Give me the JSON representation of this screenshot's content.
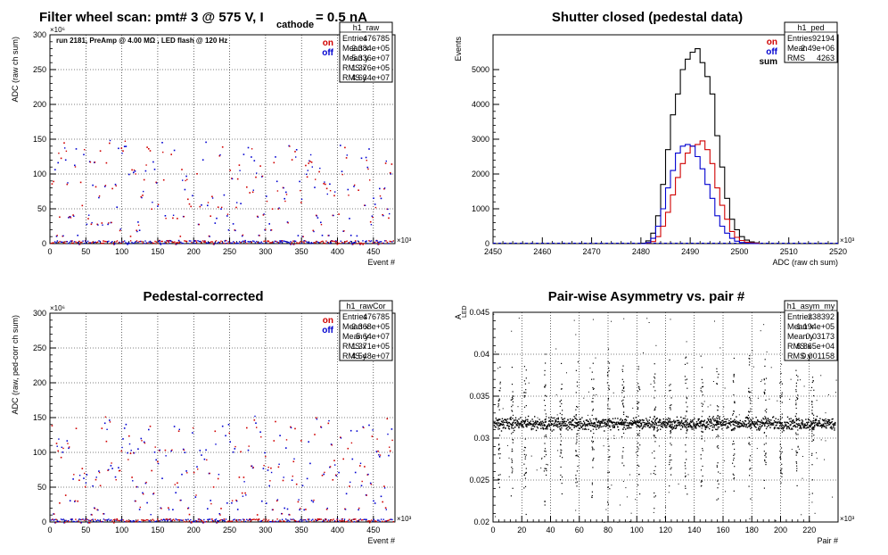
{
  "colors": {
    "on": "#d00000",
    "off": "#0000d0",
    "sum": "#000000",
    "background": "#ffffff",
    "frame": "#000000"
  },
  "chart_data": [
    {
      "id": "raw",
      "type": "scatter",
      "title": "Filter wheel scan: pmt#   3 @   575 V, I",
      "title_sub": "cathode",
      "title_tail": "= 0.5 nA",
      "annotation": "run 2181, PreAmp @ 4.00 MΩ , LED flash @  120 Hz",
      "xlabel": "Event #",
      "ylabel": "ADC (raw ch sum)",
      "x_exponent": "×10³",
      "y_exponent": "×10⁶",
      "xlim": [
        0,
        480
      ],
      "ylim": [
        0,
        300
      ],
      "xticks": [
        0,
        50,
        100,
        150,
        200,
        250,
        300,
        350,
        400,
        450
      ],
      "yticks": [
        0,
        50,
        100,
        150,
        200,
        250,
        300
      ],
      "grid": true,
      "legend": [
        {
          "label": "on",
          "color": "#d00000"
        },
        {
          "label": "off",
          "color": "#0000d0"
        }
      ],
      "stats": {
        "name": "h1_raw",
        "rows": [
          [
            "Entries",
            "476785"
          ],
          [
            "Mean x",
            "2.384e+05"
          ],
          [
            "Mean y",
            "5.336e+07"
          ],
          [
            "RMS x",
            "1.376e+05"
          ],
          [
            "RMS y",
            "4.634e+07"
          ]
        ]
      },
      "levels": [
        0,
        5,
        12,
        20,
        30,
        40,
        55,
        65,
        75,
        85,
        100,
        110,
        125,
        140
      ],
      "cycle_period": 34,
      "series": [
        {
          "name": "on"
        },
        {
          "name": "off"
        }
      ]
    },
    {
      "id": "ped",
      "type": "line",
      "title": "Shutter closed (pedestal data)",
      "xlabel": "ADC (raw ch sum)",
      "ylabel": "Events",
      "x_exponent": "×10³",
      "xlim": [
        2450,
        2520
      ],
      "ylim": [
        0,
        6000
      ],
      "xticks": [
        2450,
        2460,
        2470,
        2480,
        2490,
        2500,
        2510,
        2520
      ],
      "yticks": [
        0,
        1000,
        2000,
        3000,
        4000,
        5000
      ],
      "grid": false,
      "legend": [
        {
          "label": "on",
          "color": "#d00000"
        },
        {
          "label": "off",
          "color": "#0000d0"
        },
        {
          "label": "sum",
          "color": "#000000"
        }
      ],
      "stats": {
        "name": "h1_ped",
        "rows": [
          [
            "Entries",
            "92194"
          ],
          [
            "Mean",
            "2.49e+06"
          ],
          [
            "RMS",
            "4263"
          ]
        ]
      },
      "bin_start": 2480,
      "bin_width": 1,
      "series": [
        {
          "name": "sum",
          "values": [
            10,
            80,
            300,
            800,
            1700,
            2700,
            3700,
            4300,
            5000,
            5300,
            5500,
            5600,
            5200,
            4800,
            4300,
            3100,
            2200,
            1300,
            700,
            400,
            200,
            100,
            50,
            20
          ]
        },
        {
          "name": "on",
          "values": [
            0,
            20,
            60,
            200,
            500,
            900,
            1400,
            1900,
            2300,
            2600,
            2800,
            2850,
            2950,
            2700,
            2300,
            1600,
            1100,
            700,
            350,
            180,
            90,
            40,
            20,
            10
          ]
        },
        {
          "name": "off",
          "values": [
            0,
            30,
            150,
            500,
            1000,
            1600,
            2100,
            2600,
            2800,
            2850,
            2800,
            2500,
            2150,
            1700,
            1300,
            800,
            500,
            300,
            150,
            70,
            30,
            10,
            5,
            0
          ]
        }
      ]
    },
    {
      "id": "rawcor",
      "type": "scatter",
      "title": "Pedestal-corrected",
      "xlabel": "Event #",
      "ylabel": "ADC (raw, ped-corr ch sum)",
      "x_exponent": "×10³",
      "y_exponent": "×10⁶",
      "xlim": [
        0,
        480
      ],
      "ylim": [
        0,
        300
      ],
      "xticks": [
        0,
        50,
        100,
        150,
        200,
        250,
        300,
        350,
        400,
        450
      ],
      "yticks": [
        0,
        50,
        100,
        150,
        200,
        250,
        300
      ],
      "grid": true,
      "legend": [
        {
          "label": "on",
          "color": "#d00000"
        },
        {
          "label": "off",
          "color": "#0000d0"
        }
      ],
      "stats": {
        "name": "h1_rawCor",
        "rows": [
          [
            "Entries",
            "476785"
          ],
          [
            "Mean x",
            "2.368e+05"
          ],
          [
            "Mean y",
            "5.64e+07"
          ],
          [
            "RMS x",
            "1.371e+05"
          ],
          [
            "RMS y",
            "4.548e+07"
          ]
        ]
      },
      "levels": [
        0,
        5,
        12,
        20,
        30,
        40,
        55,
        65,
        75,
        85,
        100,
        110,
        125,
        140
      ],
      "cycle_period": 34,
      "series": [
        {
          "name": "on"
        },
        {
          "name": "off"
        }
      ]
    },
    {
      "id": "asym",
      "type": "scatter",
      "title": "Pair-wise Asymmetry vs. pair #",
      "xlabel": "Pair #",
      "ylabel": "A",
      "ylabel_sub": "LED",
      "x_exponent": "×10³",
      "xlim": [
        0,
        240
      ],
      "ylim": [
        0.02,
        0.045
      ],
      "xticks": [
        0,
        20,
        40,
        60,
        80,
        100,
        120,
        140,
        160,
        180,
        200,
        220
      ],
      "yticks": [
        0.02,
        0.025,
        0.03,
        0.035,
        0.04,
        0.045
      ],
      "grid": true,
      "stats": {
        "name": "h1_asym_my",
        "rows": [
          [
            "Entries",
            "238392"
          ],
          [
            "Mean x",
            "1.194e+05"
          ],
          [
            "Mean y",
            "0.03173"
          ],
          [
            "RMS x",
            "6.865e+04"
          ],
          [
            "RMS y",
            "0.001158"
          ]
        ]
      },
      "band_center": 0.0318,
      "band_halfwidth": 0.0008,
      "spike_x": [
        4,
        13,
        22,
        36,
        47,
        58,
        69,
        80,
        90,
        101,
        112,
        123,
        134,
        145,
        156,
        167,
        178,
        189,
        200,
        211,
        222
      ],
      "series": [
        {
          "name": ""
        }
      ]
    }
  ]
}
